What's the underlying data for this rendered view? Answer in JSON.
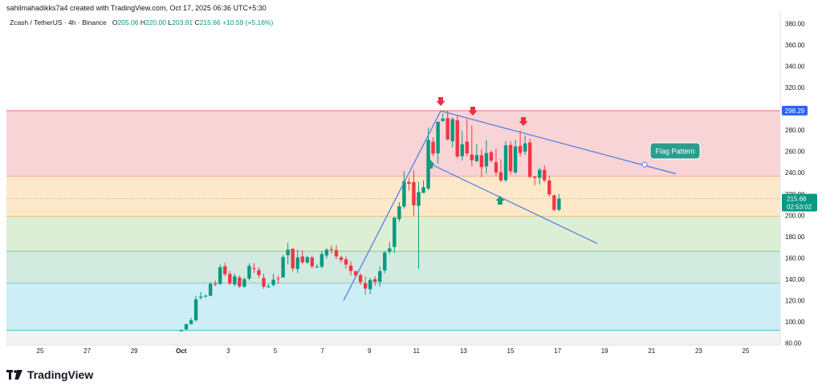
{
  "header": {
    "credit": "sahilmahadikks7a4 created with TradingView.com, Oct 17, 2025 06:36 UTC+5:30",
    "symbol": "Zcash / TetherUS · 4h · Binance",
    "ohlc": {
      "o_label": "O",
      "o": "205.06",
      "h_label": "H",
      "h": "220.00",
      "l_label": "L",
      "l": "203.91",
      "c_label": "C",
      "c": "215.66",
      "change": "+10.59 (+5.16%)"
    }
  },
  "brand": {
    "name": "TradingView",
    "logo_icon": "tradingview-logo-icon"
  },
  "colors": {
    "up": "#089981",
    "down": "#f23645",
    "trendline": "#5b7fe0",
    "marker_down": "#e8323f",
    "marker_up": "#1a9e78",
    "label_bg": "#2a9d8f",
    "price_label": "#2962ff"
  },
  "chart_data": {
    "type": "candlestick",
    "y_axis": {
      "min": 80,
      "max": 380,
      "ticks": [
        "380.00",
        "360.00",
        "340.00",
        "320.00",
        "300.00",
        "280.00",
        "260.00",
        "240.00",
        "220.00",
        "200.00",
        "180.00",
        "160.00",
        "140.00",
        "120.00",
        "100.00",
        "80.00"
      ]
    },
    "x_axis": {
      "ticks": [
        "25",
        "27",
        "29",
        "Oct",
        "3",
        "5",
        "7",
        "9",
        "11",
        "13",
        "15",
        "17",
        "19",
        "21",
        "23",
        "25"
      ]
    },
    "price_label": {
      "value": "298.29",
      "level": 298.29
    },
    "current_price": {
      "value": "215.66",
      "countdown": "02:53:02",
      "level": 215.66
    },
    "zones": [
      {
        "from": 236.5,
        "to": 298.29,
        "color": "#f9d4d6",
        "edge": "#f28b8b"
      },
      {
        "from": 199,
        "to": 236.5,
        "color": "#fde8c9",
        "edge": "#f6a847"
      },
      {
        "from": 166,
        "to": 199,
        "color": "#dcefd5",
        "edge": "#61b865"
      },
      {
        "from": 136,
        "to": 166,
        "color": "#d2eae0",
        "edge": "#4fb8a8"
      },
      {
        "from": 92,
        "to": 136,
        "color": "#cdeef5",
        "edge": "#5ac5d8"
      }
    ],
    "annotation": {
      "label": "Flag Pattern"
    },
    "candles": [
      [
        91.7,
        92.7,
        91.1,
        91.8
      ],
      [
        92.9,
        98.0,
        92.3,
        97.8
      ],
      [
        97.9,
        103.7,
        97.2,
        101.4
      ],
      [
        101.4,
        124.4,
        100.3,
        121.1
      ],
      [
        122.5,
        127.8,
        120.9,
        123.6
      ],
      [
        123.6,
        125.6,
        122.8,
        124.5
      ],
      [
        124.4,
        137.4,
        124.4,
        135.6
      ],
      [
        136.0,
        138.7,
        133.4,
        135.0
      ],
      [
        135.6,
        153.8,
        134.6,
        151.2
      ],
      [
        152.2,
        155.5,
        142.6,
        144.7
      ],
      [
        145.0,
        147.6,
        134.5,
        135.9
      ],
      [
        135.1,
        145.2,
        133.3,
        142.6
      ],
      [
        141.5,
        143.5,
        131.8,
        133.3
      ],
      [
        133.0,
        141.7,
        131.9,
        139.9
      ],
      [
        140.6,
        154.9,
        138.8,
        152.5
      ],
      [
        150.4,
        155.0,
        145.7,
        149.6
      ],
      [
        148.4,
        151.1,
        140.9,
        143.8
      ],
      [
        141.1,
        145.3,
        130.9,
        133.0
      ],
      [
        132.4,
        135.6,
        131.9,
        133.2
      ],
      [
        134.6,
        145.0,
        133.1,
        139.5
      ],
      [
        140.9,
        143.3,
        135.4,
        140.6
      ],
      [
        141.6,
        162.8,
        141.6,
        160.8
      ],
      [
        162.6,
        174.1,
        153.7,
        167.8
      ],
      [
        168.6,
        169.0,
        147.1,
        150.1
      ],
      [
        149.6,
        167.8,
        145.9,
        160.5
      ],
      [
        161.4,
        167.1,
        154.1,
        155.8
      ],
      [
        155.7,
        162.0,
        154.3,
        160.7
      ],
      [
        160.4,
        162.0,
        150.1,
        152.0
      ],
      [
        151.7,
        154.0,
        150.4,
        151.8
      ],
      [
        151.7,
        166.4,
        150.3,
        163.6
      ],
      [
        162.2,
        169.2,
        159.5,
        167.6
      ],
      [
        168.1,
        171.8,
        163.7,
        167.2
      ],
      [
        167.3,
        172.1,
        158.7,
        161.4
      ],
      [
        160.5,
        162.0,
        155.3,
        158.2
      ],
      [
        158.7,
        161.3,
        149.7,
        153.8
      ],
      [
        152.8,
        156.9,
        143.6,
        147.6
      ],
      [
        147.6,
        147.5,
        142.0,
        143.5
      ],
      [
        143.8,
        145.6,
        134.8,
        137.2
      ],
      [
        136.2,
        142.6,
        125.7,
        131.2
      ],
      [
        130.5,
        141.4,
        125.8,
        139.3
      ],
      [
        140.0,
        142.7,
        133.8,
        137.5
      ],
      [
        137.5,
        151.9,
        132.9,
        147.5
      ],
      [
        148.3,
        166.5,
        145.6,
        165.0
      ],
      [
        165.7,
        174.8,
        163.6,
        168.9
      ],
      [
        170.3,
        198.5,
        164.5,
        197.8
      ],
      [
        196.4,
        212.2,
        193.9,
        208.5
      ],
      [
        208.2,
        241.3,
        206.3,
        232.1
      ],
      [
        231.3,
        235.5,
        223.2,
        229.6
      ],
      [
        231.2,
        242.3,
        199.5,
        209.4
      ],
      [
        208.9,
        231.4,
        149.7,
        221.7
      ],
      [
        221.0,
        233.0,
        221.4,
        226.4
      ],
      [
        225.2,
        282.2,
        223.6,
        270.9
      ],
      [
        269.1,
        273.2,
        255.5,
        257.9
      ],
      [
        258.2,
        287.8,
        248.6,
        287.9
      ],
      [
        288.5,
        295.6,
        287.8,
        290.8
      ],
      [
        291.3,
        298.3,
        270.4,
        271.2
      ],
      [
        269.6,
        291.8,
        263.8,
        290.3
      ],
      [
        289.2,
        293.6,
        254.2,
        255.1
      ],
      [
        255.5,
        279.1,
        251.4,
        266.7
      ],
      [
        269.2,
        290.3,
        255.2,
        258.1
      ],
      [
        257.0,
        284.4,
        246.3,
        251.7
      ],
      [
        250.9,
        266.8,
        249.6,
        256.5
      ],
      [
        256.4,
        262.5,
        235.8,
        245.2
      ],
      [
        246.0,
        270.6,
        239.1,
        258.5
      ],
      [
        259.2,
        260.8,
        249.4,
        251.4
      ],
      [
        249.8,
        262.5,
        236.9,
        240.2
      ],
      [
        240.5,
        252.7,
        231.1,
        232.8
      ],
      [
        233.0,
        269.6,
        231.3,
        265.6
      ],
      [
        266.1,
        269.7,
        238.0,
        241.4
      ],
      [
        240.3,
        270.8,
        238.9,
        264.7
      ],
      [
        265.1,
        279.8,
        255.1,
        258.7
      ],
      [
        259.9,
        275.1,
        256.7,
        267.6
      ],
      [
        268.4,
        272.2,
        235.4,
        236.0
      ],
      [
        236.4,
        236.5,
        228.1,
        235.1
      ],
      [
        235.3,
        244.7,
        228.9,
        242.7
      ],
      [
        242.6,
        247.0,
        231.1,
        232.9
      ],
      [
        232.6,
        237.2,
        217.6,
        219.6
      ],
      [
        218.7,
        219.6,
        203.9,
        205.1
      ],
      [
        205.1,
        220.0,
        203.9,
        215.7
      ]
    ]
  }
}
